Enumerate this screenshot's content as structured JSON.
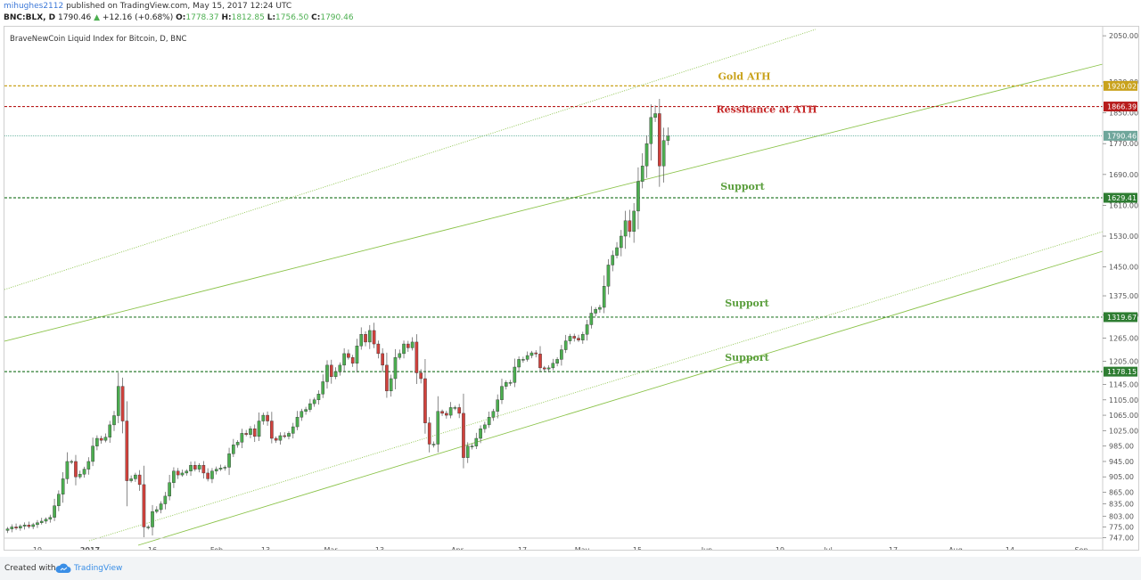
{
  "header": {
    "user": "mihughes2112",
    "published_text": " published on TradingView.com, May 15, 2017 12:24 UTC",
    "symbol": "BNC:BLX, D",
    "last": "1790.46",
    "change": "+12.16 (+0.68%)",
    "o_label": "O:",
    "o_value": "1778.37",
    "h_label": "H:",
    "h_value": "1812.85",
    "l_label": "L:",
    "l_value": "1756.50",
    "c_label": "C:",
    "c_value": "1790.46"
  },
  "footer": {
    "created_with": "Created with",
    "brand": "TradingView"
  },
  "colors": {
    "up": "#4cae50",
    "down": "#d0413c",
    "gold": "#c9a21c",
    "red_line": "#b71c1c",
    "support": "#2e7d32",
    "channel": "#8bc34a",
    "price_line": "#4aa58d"
  },
  "chart_data": {
    "type": "candlestick",
    "title": "BraveNewCoin Liquid Index for Bitcoin, D, BNC",
    "x_ticks": [
      "19",
      "2017",
      "16",
      "Feb",
      "13",
      "Mar",
      "13",
      "Apr",
      "17",
      "May",
      "15",
      "Jun",
      "19",
      "Jul",
      "17",
      "Aug",
      "14",
      "Sep"
    ],
    "y_ticks": [
      2050,
      1930,
      1850,
      1770,
      1690,
      1610,
      1530,
      1450,
      1375,
      1325,
      1265,
      1205,
      1145,
      1105,
      1065,
      1025,
      985,
      945,
      905,
      865,
      835,
      803,
      775,
      747
    ],
    "price_labels": [
      {
        "value": "1920.02",
        "kind": "gold"
      },
      {
        "value": "1866.39",
        "kind": "resistance"
      },
      {
        "value": "1790.46",
        "kind": "last"
      },
      {
        "value": "1629.41",
        "kind": "support"
      },
      {
        "value": "1319.67",
        "kind": "support"
      },
      {
        "value": "1178.15",
        "kind": "support"
      }
    ],
    "annotations": [
      {
        "text": "Gold ATH",
        "price": 1920.02,
        "kind": "gold"
      },
      {
        "text": "Ressitance at ATH",
        "price": 1866.39,
        "kind": "resistance"
      },
      {
        "text": "Support",
        "price": 1629.41,
        "kind": "support"
      },
      {
        "text": "Support",
        "price": 1319.67,
        "kind": "support"
      },
      {
        "text": "Support",
        "price": 1178.15,
        "kind": "support"
      }
    ],
    "candles_start": "2016-12-09",
    "closes": [
      770,
      775,
      772,
      777,
      780,
      776,
      781,
      786,
      790,
      795,
      800,
      830,
      860,
      900,
      945,
      945,
      905,
      912,
      925,
      945,
      985,
      1005,
      1000,
      1008,
      1040,
      1064,
      1140,
      1050,
      895,
      900,
      910,
      885,
      775,
      775,
      815,
      820,
      835,
      855,
      890,
      920,
      910,
      915,
      920,
      935,
      925,
      935,
      915,
      900,
      920,
      925,
      928,
      930,
      965,
      988,
      995,
      1018,
      1015,
      1030,
      1010,
      1050,
      1065,
      1050,
      1005,
      1000,
      1012,
      1010,
      1018,
      1035,
      1060,
      1075,
      1080,
      1095,
      1105,
      1120,
      1152,
      1195,
      1165,
      1178,
      1195,
      1225,
      1215,
      1200,
      1245,
      1275,
      1255,
      1285,
      1250,
      1225,
      1195,
      1128,
      1160,
      1215,
      1225,
      1250,
      1240,
      1255,
      1175,
      1160,
      1045,
      990,
      990,
      1075,
      1070,
      1065,
      1085,
      1085,
      1070,
      955,
      985,
      985,
      1005,
      1030,
      1040,
      1060,
      1075,
      1105,
      1140,
      1150,
      1150,
      1190,
      1210,
      1210,
      1220,
      1227,
      1224,
      1188,
      1185,
      1188,
      1200,
      1210,
      1235,
      1258,
      1270,
      1265,
      1260,
      1275,
      1300,
      1330,
      1340,
      1345,
      1400,
      1455,
      1480,
      1500,
      1530,
      1570,
      1542,
      1595,
      1672,
      1712,
      1770,
      1838,
      1848,
      1712,
      1778,
      1790
    ],
    "ylim": [
      740,
      2070
    ],
    "xlim": [
      "2016-12-09",
      "2017-09-08"
    ]
  }
}
